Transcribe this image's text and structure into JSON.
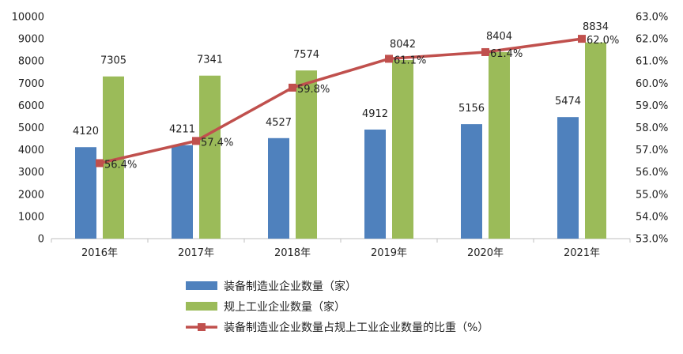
{
  "chart_data": {
    "type": "bar",
    "categories": [
      "2016年",
      "2017年",
      "2018年",
      "2019年",
      "2020年",
      "2021年"
    ],
    "series": [
      {
        "name": "装备制造业企业数量（家）",
        "type": "bar",
        "axis": "left",
        "color": "#4F81BD",
        "values": [
          4120,
          4211,
          4527,
          4912,
          5156,
          5474
        ],
        "labels": [
          "4120",
          "4211",
          "4527",
          "4912",
          "5156",
          "5474"
        ]
      },
      {
        "name": "规上工业企业数量（家）",
        "type": "bar",
        "axis": "left",
        "color": "#9BBB59",
        "values": [
          7305,
          7341,
          7574,
          8042,
          8404,
          8834
        ],
        "labels": [
          "7305",
          "7341",
          "7574",
          "8042",
          "8404",
          "8834"
        ]
      },
      {
        "name": "装备制造业企业数量占规上工业企业数量的比重（%）",
        "type": "line",
        "axis": "right",
        "color": "#C0504D",
        "values": [
          56.4,
          57.4,
          59.8,
          61.1,
          61.4,
          62.0
        ],
        "labels": [
          "56.4%",
          "57.4%",
          "59.8%",
          "61.1%",
          "61.4%",
          "62.0%"
        ]
      }
    ],
    "y_left": {
      "min": 0,
      "max": 10000,
      "ticks": [
        0,
        1000,
        2000,
        3000,
        4000,
        5000,
        6000,
        7000,
        8000,
        9000,
        10000
      ],
      "tick_labels": [
        "0",
        "1000",
        "2000",
        "3000",
        "4000",
        "5000",
        "6000",
        "7000",
        "8000",
        "9000",
        "10000"
      ]
    },
    "y_right": {
      "min": 53.0,
      "max": 63.0,
      "ticks": [
        53,
        54,
        55,
        56,
        57,
        58,
        59,
        60,
        61,
        62,
        63
      ],
      "tick_labels": [
        "53.0%",
        "54.0%",
        "55.0%",
        "56.0%",
        "57.0%",
        "58.0%",
        "59.0%",
        "60.0%",
        "61.0%",
        "62.0%",
        "63.0%"
      ]
    },
    "grid": false,
    "legend_position": "bottom-center",
    "title": "",
    "xlabel": "",
    "ylabel": ""
  }
}
